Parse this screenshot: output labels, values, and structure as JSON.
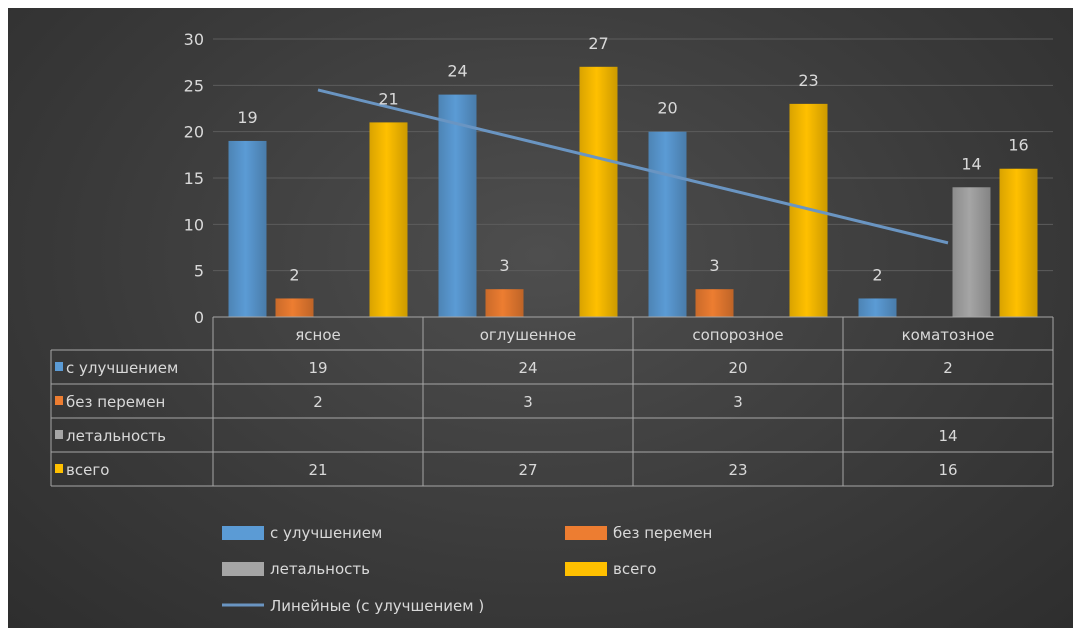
{
  "chart_data": {
    "type": "bar",
    "categories": [
      "ясное",
      "оглушенное",
      "сопорозное",
      "коматозное"
    ],
    "series": [
      {
        "name": "с улучшением",
        "values": [
          19,
          24,
          20,
          2
        ],
        "color": "#5b9bd5"
      },
      {
        "name": "без перемен",
        "values": [
          2,
          3,
          3,
          null
        ],
        "color": "#ed7d31"
      },
      {
        "name": "летальность",
        "values": [
          null,
          null,
          null,
          14
        ],
        "color": "#a5a5a5"
      },
      {
        "name": "всего",
        "values": [
          21,
          27,
          23,
          16
        ],
        "color": "#ffc000"
      }
    ],
    "trendline": {
      "name": "Линейные (с улучшением )",
      "series": "с улучшением",
      "type": "linear",
      "color": "#6a95c2"
    },
    "y_ticks": [
      "0",
      "5",
      "10",
      "15",
      "20",
      "25",
      "30"
    ],
    "ylim": [
      0,
      30
    ],
    "grid": true,
    "data_table": true,
    "legend_position": "bottom"
  }
}
